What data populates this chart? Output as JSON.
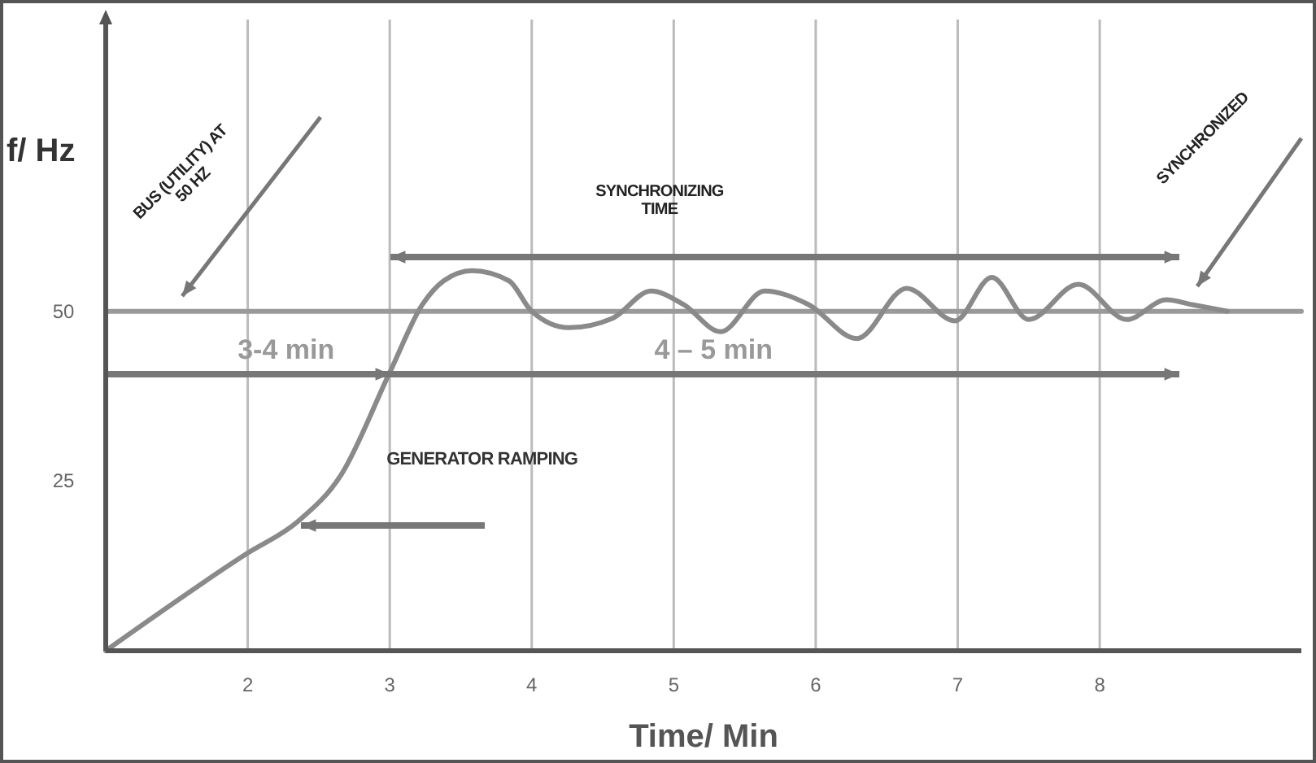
{
  "chart_data": {
    "type": "line",
    "xlabel": "Time/ Min",
    "ylabel": "f/ Hz",
    "xlim": [
      1,
      9.42
    ],
    "ylim": [
      0,
      93
    ],
    "xticks": [
      2,
      3,
      4,
      5,
      6,
      7,
      8
    ],
    "yticks": [
      25,
      50
    ],
    "grid": "x",
    "annotations": [
      "BUS (UTILITY) AT 50 HZ",
      "SYNCHRONIZING TIME",
      "SYNCHRONIZED",
      "3-4 min",
      "4 – 5 min",
      "GENERATOR RAMPING"
    ],
    "series": [
      {
        "color": "#9a9a9a",
        "x": [
          1,
          2,
          3,
          4,
          5,
          6,
          7,
          8,
          9.42
        ],
        "values": [
          50,
          50,
          50,
          50,
          50,
          50,
          50,
          50,
          50
        ]
      },
      {
        "color": "#8a8a8a",
        "x": [
          1,
          2,
          2.35,
          2.66,
          3,
          3.23,
          3.38,
          3.58,
          3.84,
          4,
          4.26,
          4.57,
          4.84,
          5.07,
          5.33,
          5.64,
          5.95,
          6.29,
          6.64,
          6.98,
          7.24,
          7.5,
          7.85,
          8.19,
          8.47,
          8.65,
          8.9
        ],
        "values": [
          0,
          14.4,
          19,
          26,
          41,
          51,
          54.5,
          56,
          54.5,
          50,
          47.6,
          49,
          53,
          51,
          47,
          53,
          51,
          46,
          53.4,
          48.6,
          55,
          48.8,
          54,
          48.8,
          51.7,
          51,
          50
        ]
      }
    ]
  }
}
